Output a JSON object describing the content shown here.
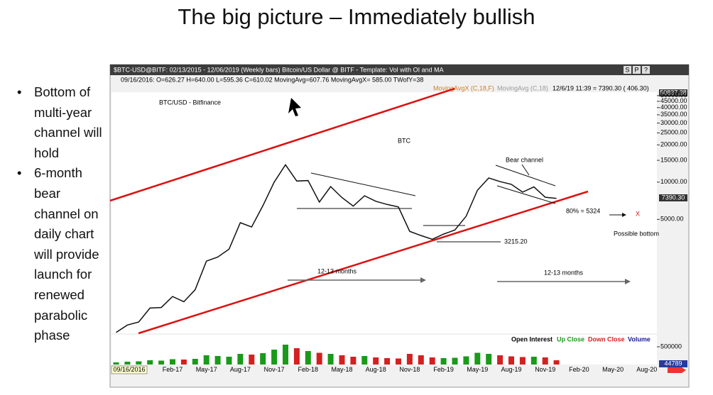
{
  "slide": {
    "title": "The big picture – Immediately bullish",
    "bullets": [
      "Bottom of multi-year channel will hold",
      "6-month bear channel on daily chart will provide launch for renewed parabolic phase"
    ]
  },
  "window": {
    "title_bar": "$BTC-USD@BITF: 02/13/2015 - 12/06/2019 (Weekly bars)    Bitcoin/US Dollar @ BITF - Template: Vol with OI and MA",
    "buttons": [
      "S",
      "P",
      "?"
    ],
    "info": "09/16/2016: O=626.27  H=640.00  L=595.36  C=610.02  MovingAvg=607.76  MovingAvgX= 585.00  TWofY=38",
    "ma_legend": [
      "MovingAvgX (C,18,F)",
      "MovingAvg (C,18)"
    ],
    "last": "12/6/19 11:39 = 7390.30 ( 406.30)",
    "top_box": "50837.38",
    "last_box": "7390.30",
    "date_box": "09/16/2016"
  },
  "chart_data": {
    "type": "line",
    "title": "BTC/USD - Bitfinance",
    "label": "BTC",
    "categories": [
      null,
      null,
      null,
      null,
      null,
      "Feb-17",
      null,
      null,
      "May-17",
      null,
      null,
      "Aug-17",
      null,
      null,
      "Nov-17",
      null,
      null,
      "Feb-18",
      null,
      null,
      "May-18",
      null,
      null,
      "Aug-18",
      null,
      null,
      "Nov-18",
      null,
      null,
      "Feb-19",
      null,
      null,
      "May-19",
      null,
      null,
      "Aug-19",
      null,
      null,
      "Nov-19",
      null,
      null,
      "Feb-20",
      null,
      null,
      "May-20",
      null,
      null,
      "Aug-20"
    ],
    "series": [
      {
        "name": "BTC",
        "color": "#111111",
        "values": [
          610,
          700,
          740,
          960,
          970,
          1190,
          1080,
          1350,
          2300,
          2480,
          2870,
          4700,
          4340,
          6450,
          10000,
          13800,
          10200,
          10300,
          6900,
          9200,
          7500,
          6400,
          7750,
          7000,
          6600,
          6300,
          4000,
          3700,
          3450,
          3800,
          4100,
          5300,
          8600,
          10800,
          10100,
          9600,
          8300,
          9150,
          7550,
          7390,
          null,
          null,
          null,
          null,
          null,
          null,
          null,
          null
        ]
      }
    ],
    "log_scale": true,
    "grid": false,
    "ylim": [
      600,
      53300
    ],
    "yticks": [
      {
        "value": 50000,
        "label": "50000.00"
      },
      {
        "value": 45000,
        "label": "45000.00"
      },
      {
        "value": 40000,
        "label": "40000.00"
      },
      {
        "value": 35000,
        "label": "35000.00"
      },
      {
        "value": 30000,
        "label": "30000.00"
      },
      {
        "value": 25000,
        "label": "25000.00"
      },
      {
        "value": 20000,
        "label": "20000.00"
      },
      {
        "value": 15000,
        "label": "15000.00"
      },
      {
        "value": 10000,
        "label": "10000.00"
      },
      {
        "value": 5000,
        "label": "5000.00"
      }
    ],
    "annotations": {
      "bear_channel": "Bear channel",
      "low": "3215.20",
      "target": "80% = 5324",
      "x_mark": "X",
      "possible_bottom": "Possible bottom",
      "months_1": "12-13 months",
      "months_2": "12-13 months"
    },
    "volume": {
      "legend": [
        {
          "name": "Open Interest",
          "color": "#000000"
        },
        {
          "name": "Up Close",
          "color": "#1a9a1a"
        },
        {
          "name": "Down Close",
          "color": "#d42020"
        },
        {
          "name": "Volume",
          "color": "#1a1a9a"
        }
      ],
      "ylim": [
        0,
        800000
      ],
      "yticks": [
        {
          "value": 500000,
          "label": "500000"
        }
      ],
      "last_box": "44789",
      "values": [
        60000,
        80000,
        90000,
        120000,
        110000,
        150000,
        140000,
        160000,
        260000,
        240000,
        220000,
        300000,
        280000,
        320000,
        420000,
        560000,
        460000,
        380000,
        330000,
        300000,
        260000,
        220000,
        240000,
        200000,
        180000,
        170000,
        300000,
        260000,
        200000,
        180000,
        190000,
        230000,
        330000,
        300000,
        260000,
        230000,
        210000,
        220000,
        200000,
        120000,
        null,
        null,
        null,
        null,
        null,
        null,
        null,
        null
      ]
    }
  }
}
